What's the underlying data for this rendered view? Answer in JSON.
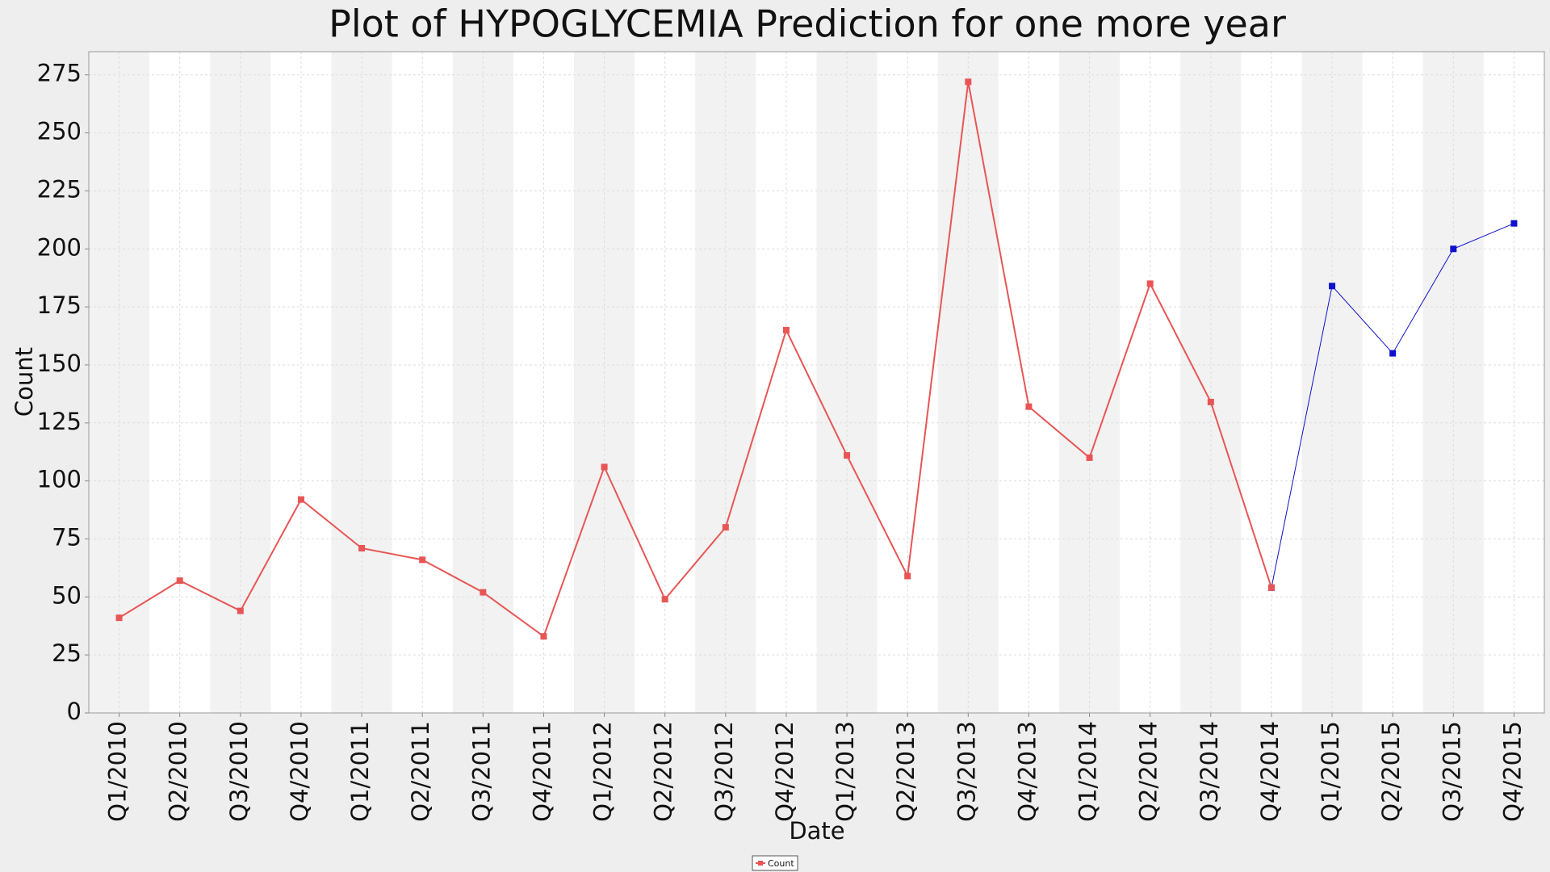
{
  "chart_data": {
    "type": "line",
    "title": "Plot of HYPOGLYCEMIA Prediction for one more year",
    "x_label": "Date",
    "y_label": "Count",
    "categories": [
      "Q1/2010",
      "Q2/2010",
      "Q3/2010",
      "Q4/2010",
      "Q1/2011",
      "Q2/2011",
      "Q3/2011",
      "Q4/2011",
      "Q1/2012",
      "Q2/2012",
      "Q3/2012",
      "Q4/2012",
      "Q1/2013",
      "Q2/2013",
      "Q3/2013",
      "Q4/2013",
      "Q1/2014",
      "Q2/2014",
      "Q3/2014",
      "Q4/2014",
      "Q1/2015",
      "Q2/2015",
      "Q3/2015",
      "Q4/2015"
    ],
    "series": [
      {
        "name": "Count",
        "color": "#e85555",
        "values": [
          41,
          57,
          44,
          92,
          71,
          66,
          52,
          33,
          106,
          49,
          80,
          165,
          111,
          59,
          272,
          132,
          110,
          185,
          134,
          54,
          null,
          null,
          null,
          null
        ]
      },
      {
        "color": "#1010cc",
        "values": [
          null,
          null,
          null,
          null,
          null,
          null,
          null,
          null,
          null,
          null,
          null,
          null,
          null,
          null,
          null,
          null,
          null,
          null,
          null,
          54,
          184,
          155,
          200,
          211
        ]
      }
    ],
    "ylim": [
      0,
      285
    ],
    "yticks": [
      0,
      25,
      50,
      75,
      100,
      125,
      150,
      175,
      200,
      225,
      250,
      275
    ],
    "grid": true,
    "legend": "bottom"
  }
}
